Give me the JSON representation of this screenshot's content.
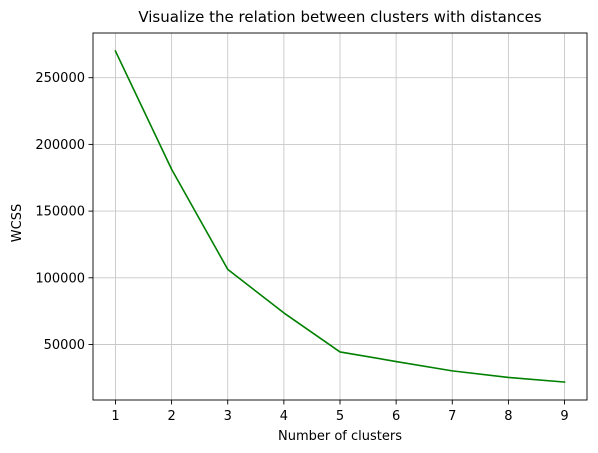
{
  "chart_data": {
    "type": "line",
    "title": "Visualize the relation between  clusters with distances",
    "xlabel": "Number of clusters",
    "ylabel": "WCSS",
    "x": [
      1,
      2,
      3,
      4,
      5,
      6,
      7,
      8,
      9
    ],
    "series": [
      {
        "values": [
          269981,
          181363,
          106348,
          73679,
          44448,
          37233,
          30241,
          25337,
          21850
        ],
        "color": "#008000"
      }
    ],
    "xlim": [
      0.6,
      9.4
    ],
    "ylim": [
      8400,
      283500
    ],
    "xticks": [
      1,
      2,
      3,
      4,
      5,
      6,
      7,
      8,
      9
    ],
    "yticks": [
      50000,
      100000,
      150000,
      200000,
      250000
    ],
    "grid": true,
    "legend": false
  }
}
